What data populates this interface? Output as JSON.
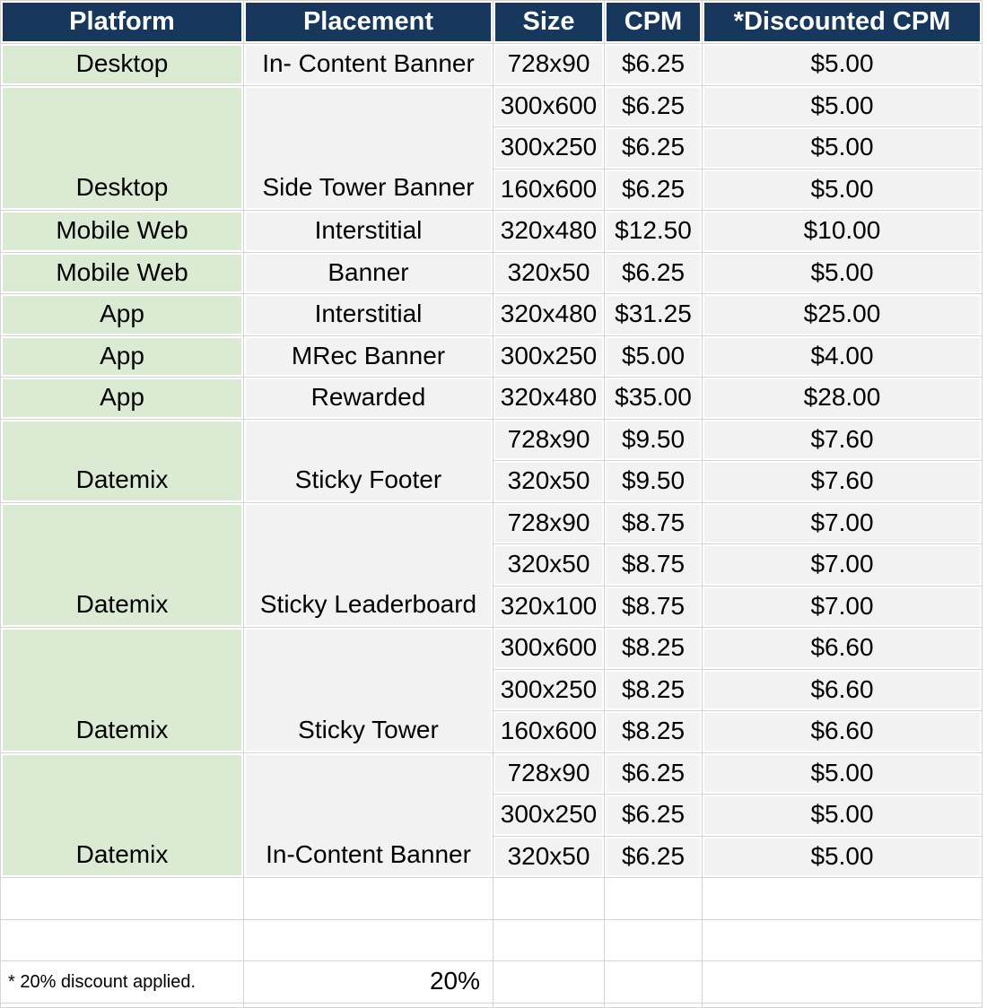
{
  "colors": {
    "header_bg": "#17375D",
    "header_text": "#FFFFFF",
    "platform_cell_bg": "#DBEAD3",
    "data_cell_bg": "#F2F2F2",
    "gridline": "#D4D4D4",
    "cell_gap": "#FFFFFF",
    "body_text": "#000000"
  },
  "header": {
    "columns": [
      "Platform",
      "Placement",
      "Size",
      "CPM",
      "*Discounted CPM"
    ]
  },
  "sections": [
    {
      "platform": "Desktop",
      "placement": "In- Content Banner",
      "rows": [
        {
          "size": "728x90",
          "cpm": "$6.25",
          "discounted": "$5.00"
        }
      ]
    },
    {
      "platform": "Desktop",
      "placement": "Side Tower Banner",
      "rows": [
        {
          "size": "300x600",
          "cpm": "$6.25",
          "discounted": "$5.00"
        },
        {
          "size": "300x250",
          "cpm": "$6.25",
          "discounted": "$5.00"
        },
        {
          "size": "160x600",
          "cpm": "$6.25",
          "discounted": "$5.00"
        }
      ]
    },
    {
      "platform": "Mobile Web",
      "placement": "Interstitial",
      "rows": [
        {
          "size": "320x480",
          "cpm": "$12.50",
          "discounted": "$10.00"
        }
      ]
    },
    {
      "platform": "Mobile Web",
      "placement": "Banner",
      "rows": [
        {
          "size": "320x50",
          "cpm": "$6.25",
          "discounted": "$5.00"
        }
      ]
    },
    {
      "platform": "App",
      "placement": "Interstitial",
      "rows": [
        {
          "size": "320x480",
          "cpm": "$31.25",
          "discounted": "$25.00"
        }
      ]
    },
    {
      "platform": "App",
      "placement": "MRec Banner",
      "rows": [
        {
          "size": "300x250",
          "cpm": "$5.00",
          "discounted": "$4.00"
        }
      ]
    },
    {
      "platform": "App",
      "placement": "Rewarded",
      "rows": [
        {
          "size": "320x480",
          "cpm": "$35.00",
          "discounted": "$28.00"
        }
      ]
    },
    {
      "platform": "Datemix",
      "placement": "Sticky Footer",
      "rows": [
        {
          "size": "728x90",
          "cpm": "$9.50",
          "discounted": "$7.60"
        },
        {
          "size": "320x50",
          "cpm": "$9.50",
          "discounted": "$7.60"
        }
      ]
    },
    {
      "platform": "Datemix",
      "placement": "Sticky Leaderboard",
      "rows": [
        {
          "size": "728x90",
          "cpm": "$8.75",
          "discounted": "$7.00"
        },
        {
          "size": "320x50",
          "cpm": "$8.75",
          "discounted": "$7.00"
        },
        {
          "size": "320x100",
          "cpm": "$8.75",
          "discounted": "$7.00"
        }
      ]
    },
    {
      "platform": "Datemix",
      "placement": "Sticky Tower",
      "rows": [
        {
          "size": "300x600",
          "cpm": "$8.25",
          "discounted": "$6.60"
        },
        {
          "size": "300x250",
          "cpm": "$8.25",
          "discounted": "$6.60"
        },
        {
          "size": "160x600",
          "cpm": "$8.25",
          "discounted": "$6.60"
        }
      ]
    },
    {
      "platform": "Datemix",
      "placement": "In-Content Banner",
      "rows": [
        {
          "size": "728x90",
          "cpm": "$6.25",
          "discounted": "$5.00"
        },
        {
          "size": "300x250",
          "cpm": "$6.25",
          "discounted": "$5.00"
        },
        {
          "size": "320x50",
          "cpm": "$6.25",
          "discounted": "$5.00"
        }
      ]
    }
  ],
  "empty_row_count": 2,
  "footer": {
    "note": "* 20% discount applied.",
    "discount_value": "20%"
  }
}
